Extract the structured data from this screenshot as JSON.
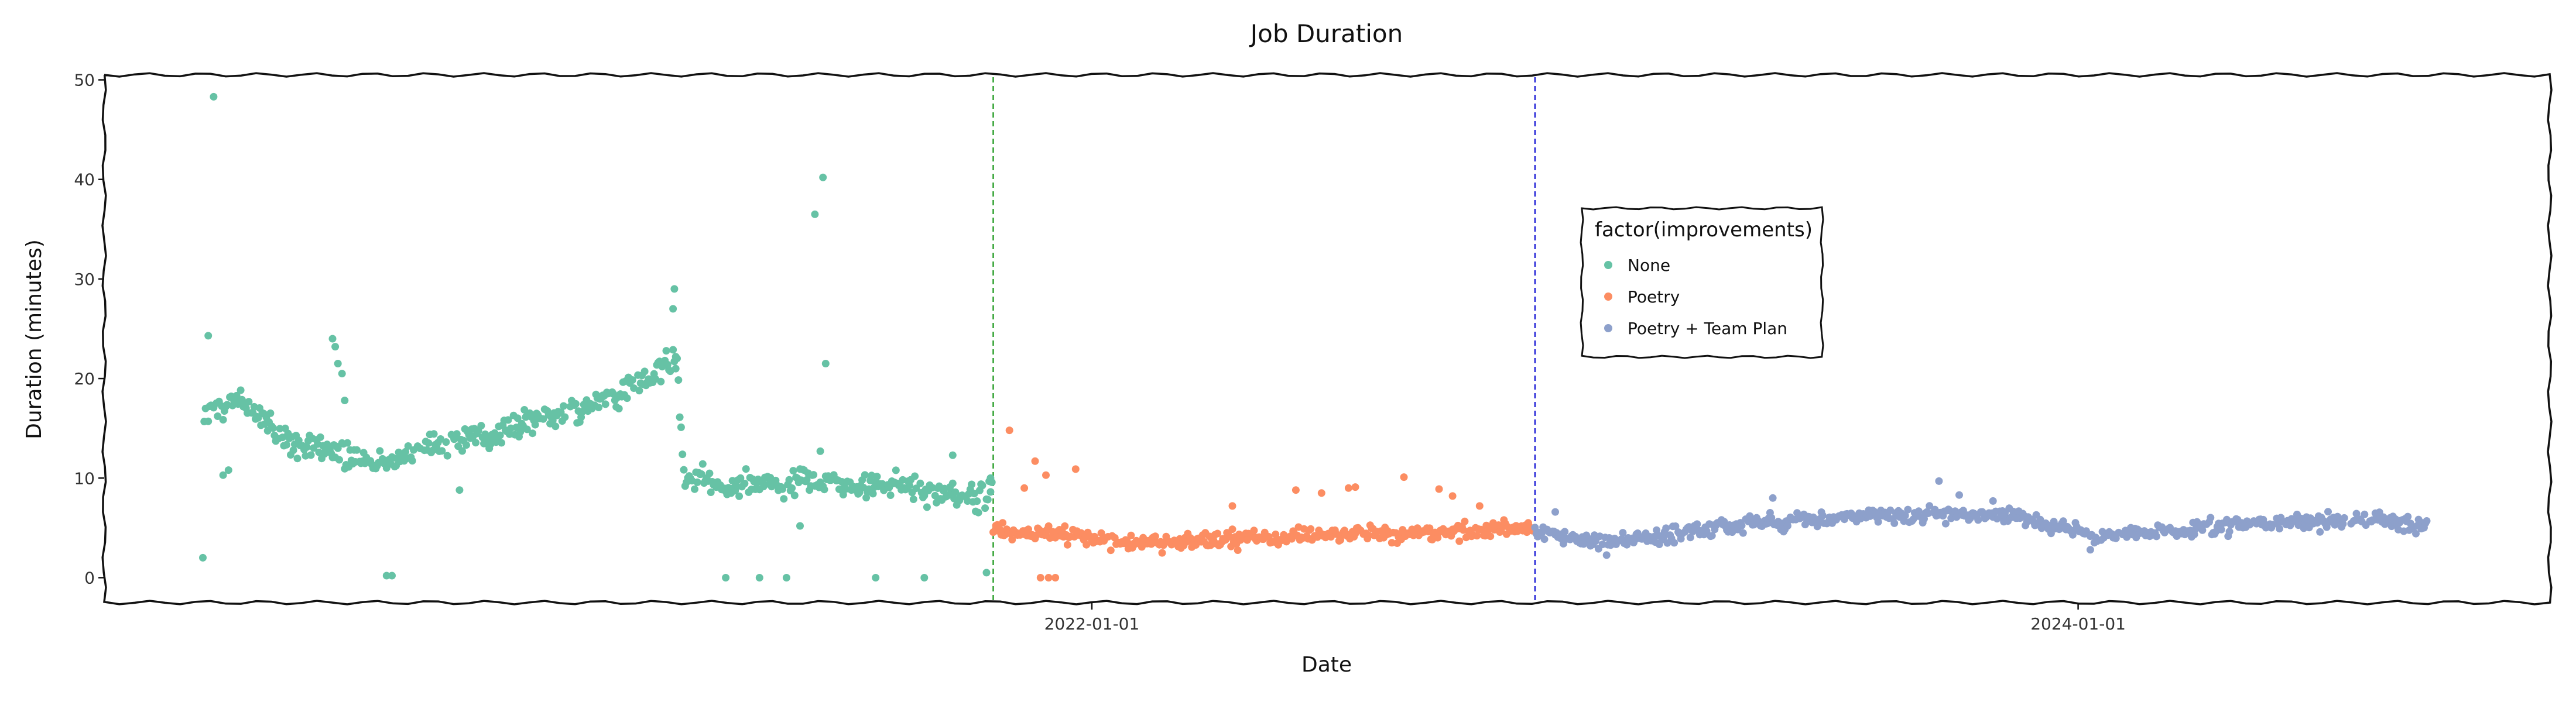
{
  "chart_data": {
    "type": "scatter",
    "title": "Job Duration",
    "xlabel": "Date",
    "ylabel": "Duration (minutes)",
    "xlim": [
      "2020-01-01",
      "2024-12-15"
    ],
    "ylim": [
      -2.5,
      50.5
    ],
    "yticks": [
      0,
      10,
      20,
      30,
      40,
      50
    ],
    "xticks": [
      "2022-01-01",
      "2024-01-01"
    ],
    "grid": false,
    "legend": {
      "title": "factor(improvements)",
      "placement": "center-right",
      "entries": [
        "None",
        "Poetry",
        "Poetry + Team Plan"
      ]
    },
    "vlines": [
      {
        "x": "2021-10-20",
        "color": "#2ca02c",
        "style": "dashed"
      },
      {
        "x": "2022-11-25",
        "color": "#1f1fd6",
        "style": "dashed"
      }
    ],
    "series": [
      {
        "name": "None",
        "color": "#66c2a5",
        "x_start": "2020-03-15",
        "x_end": "2021-10-20",
        "anchors": [
          [
            "2020-03-15",
            17.0
          ],
          [
            "2020-04-10",
            17.8
          ],
          [
            "2020-05-15",
            14.0
          ],
          [
            "2020-06-20",
            12.5
          ],
          [
            "2020-07-20",
            11.5
          ],
          [
            "2020-08-20",
            12.8
          ],
          [
            "2020-09-20",
            14.0
          ],
          [
            "2020-10-20",
            14.5
          ],
          [
            "2020-11-20",
            16.0
          ],
          [
            "2020-12-20",
            17.0
          ],
          [
            "2021-01-20",
            18.5
          ],
          [
            "2021-02-20",
            21.5
          ],
          [
            "2021-02-28",
            22.5
          ],
          [
            "2021-03-05",
            10.0
          ],
          [
            "2021-04-15",
            9.3
          ],
          [
            "2021-06-15",
            9.5
          ],
          [
            "2021-08-15",
            9.2
          ],
          [
            "2021-09-10",
            8.0
          ],
          [
            "2021-10-20",
            8.5
          ]
        ],
        "outliers": [
          [
            "2020-03-22",
            48.3
          ],
          [
            "2020-03-18",
            24.3
          ],
          [
            "2020-03-14",
            2.0
          ],
          [
            "2020-03-29",
            10.3
          ],
          [
            "2020-04-02",
            10.8
          ],
          [
            "2020-06-18",
            24.0
          ],
          [
            "2020-06-20",
            23.2
          ],
          [
            "2020-06-22",
            21.5
          ],
          [
            "2020-06-25",
            20.5
          ],
          [
            "2020-06-27",
            17.8
          ],
          [
            "2020-07-28",
            0.2
          ],
          [
            "2020-08-01",
            0.2
          ],
          [
            "2020-09-20",
            8.8
          ],
          [
            "2021-02-25",
            27.0
          ],
          [
            "2021-02-26",
            29.0
          ],
          [
            "2021-02-27",
            21.0
          ],
          [
            "2021-04-05",
            0.0
          ],
          [
            "2021-04-30",
            0.0
          ],
          [
            "2021-05-20",
            0.0
          ],
          [
            "2021-05-30",
            5.2
          ],
          [
            "2021-06-10",
            36.5
          ],
          [
            "2021-06-16",
            40.2
          ],
          [
            "2021-06-18",
            21.5
          ],
          [
            "2021-06-14",
            12.7
          ],
          [
            "2021-07-25",
            0.0
          ],
          [
            "2021-08-30",
            0.0
          ],
          [
            "2021-09-20",
            12.3
          ],
          [
            "2021-10-15",
            0.5
          ],
          [
            "2021-10-18",
            10.0
          ]
        ]
      },
      {
        "name": "Poetry",
        "color": "#fc8d62",
        "x_start": "2021-10-20",
        "x_end": "2022-11-25",
        "anchors": [
          [
            "2021-10-20",
            4.5
          ],
          [
            "2021-12-01",
            4.5
          ],
          [
            "2022-01-01",
            4.0
          ],
          [
            "2022-03-01",
            3.5
          ],
          [
            "2022-05-01",
            4.0
          ],
          [
            "2022-07-01",
            4.3
          ],
          [
            "2022-09-01",
            4.5
          ],
          [
            "2022-11-25",
            5.0
          ]
        ],
        "outliers": [
          [
            "2021-11-01",
            14.8
          ],
          [
            "2021-11-20",
            11.7
          ],
          [
            "2021-11-28",
            10.3
          ],
          [
            "2021-12-20",
            10.9
          ],
          [
            "2021-11-12",
            9.0
          ],
          [
            "2021-11-24",
            0.0
          ],
          [
            "2021-11-30",
            0.0
          ],
          [
            "2021-12-05",
            0.0
          ],
          [
            "2022-04-15",
            7.2
          ],
          [
            "2022-06-01",
            8.8
          ],
          [
            "2022-06-20",
            8.5
          ],
          [
            "2022-07-10",
            9.0
          ],
          [
            "2022-07-15",
            9.1
          ],
          [
            "2022-08-20",
            10.1
          ],
          [
            "2022-09-15",
            8.9
          ],
          [
            "2022-09-25",
            8.2
          ],
          [
            "2022-10-15",
            7.2
          ]
        ]
      },
      {
        "name": "Poetry + Team Plan",
        "color": "#8da0cb",
        "x_start": "2022-11-25",
        "x_end": "2024-09-15",
        "anchors": [
          [
            "2022-11-25",
            4.5
          ],
          [
            "2023-01-15",
            3.5
          ],
          [
            "2023-03-15",
            4.5
          ],
          [
            "2023-05-15",
            5.5
          ],
          [
            "2023-07-15",
            6.2
          ],
          [
            "2023-09-15",
            6.3
          ],
          [
            "2023-11-15",
            6.3
          ],
          [
            "2023-12-20",
            5.0
          ],
          [
            "2024-01-15",
            4.3
          ],
          [
            "2024-03-15",
            4.7
          ],
          [
            "2024-05-15",
            5.5
          ],
          [
            "2024-07-15",
            5.8
          ],
          [
            "2024-09-15",
            5.5
          ]
        ],
        "outliers": [
          [
            "2022-12-10",
            6.6
          ],
          [
            "2023-05-20",
            8.0
          ],
          [
            "2023-09-20",
            9.7
          ],
          [
            "2023-10-05",
            8.3
          ],
          [
            "2023-10-30",
            7.7
          ],
          [
            "2024-01-10",
            2.8
          ]
        ]
      }
    ]
  }
}
